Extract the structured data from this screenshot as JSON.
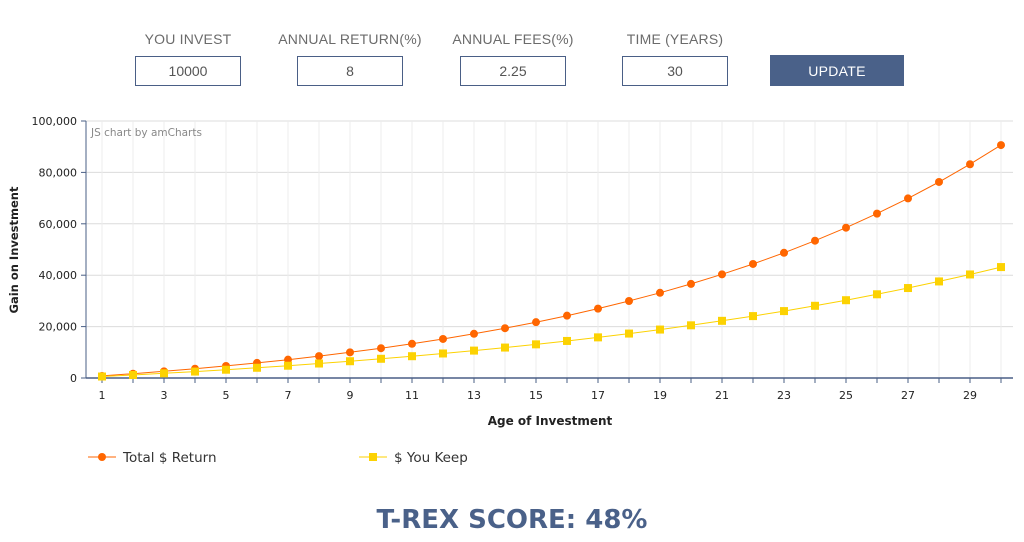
{
  "form": {
    "fields": [
      {
        "label": "YOU INVEST",
        "value": "10000"
      },
      {
        "label": "ANNUAL RETURN(%)",
        "value": "8"
      },
      {
        "label": "ANNUAL FEES(%)",
        "value": "2.25"
      },
      {
        "label": "TIME (YEARS)",
        "value": "30"
      }
    ],
    "update_label": "UPDATE"
  },
  "chart_data": {
    "type": "line",
    "credit": "JS chart by amCharts",
    "xlabel": "Age of Investment",
    "ylabel": "Gain on Investment",
    "ylim": [
      0,
      100000
    ],
    "yticks": [
      0,
      20000,
      40000,
      60000,
      80000,
      100000
    ],
    "ytick_labels": [
      "0",
      "20,000",
      "40,000",
      "60,000",
      "80,000",
      "100,000"
    ],
    "x": [
      1,
      2,
      3,
      4,
      5,
      6,
      7,
      8,
      9,
      10,
      11,
      12,
      13,
      14,
      15,
      16,
      17,
      18,
      19,
      20,
      21,
      22,
      23,
      24,
      25,
      26,
      27,
      28,
      29,
      30
    ],
    "xtick_labels": [
      "1",
      "3",
      "5",
      "7",
      "9",
      "11",
      "13",
      "15",
      "17",
      "19",
      "21",
      "23",
      "25",
      "27",
      "29"
    ],
    "series": [
      {
        "name": "Total $ Return",
        "color": "#ff6600",
        "marker": "circle",
        "values": [
          800,
          1664,
          2597,
          3605,
          4693,
          5869,
          7138,
          8509,
          9990,
          11589,
          13316,
          15182,
          17196,
          19372,
          21722,
          24259,
          27000,
          29960,
          33157,
          36610,
          40338,
          44365,
          48715,
          53412,
          58485,
          63964,
          69881,
          76271,
          83173,
          90627
        ]
      },
      {
        "name": "$ You Keep",
        "color": "#fcd202",
        "marker": "square",
        "values": [
          575,
          1183,
          1825,
          2505,
          3223,
          3983,
          4785,
          5634,
          6530,
          7478,
          8480,
          9539,
          10659,
          11842,
          13093,
          14415,
          15812,
          17289,
          18850,
          20500,
          22244,
          24087,
          26035,
          28094,
          30271,
          32572,
          35004,
          37574,
          40291,
          43162
        ]
      }
    ],
    "legend_position": "bottom-left",
    "grid": true
  },
  "score": {
    "text": "T-REX SCORE: 48%"
  }
}
